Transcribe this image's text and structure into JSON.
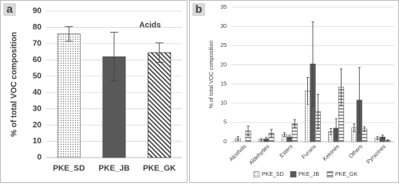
{
  "chart_data": [
    {
      "type": "bar",
      "panel_label": "a",
      "annotation": "Acids",
      "ylabel": "% of total VOC composition",
      "categories": [
        "PKE_SD",
        "PKE_JB",
        "PKE_GK"
      ],
      "values": [
        76,
        62,
        64.5
      ],
      "errors": [
        4.5,
        15,
        6
      ],
      "colors": [
        "#7f7f7f",
        "#595959",
        "#404040"
      ],
      "patterns": [
        "dots",
        "solid",
        "hatch"
      ],
      "ylim": [
        0,
        90
      ],
      "yticks": [
        0,
        10,
        20,
        30,
        40,
        50,
        60,
        70,
        80,
        90
      ],
      "grid": true
    },
    {
      "type": "grouped_bar",
      "panel_label": "b",
      "ylabel": "% of total VOC composition",
      "categories": [
        "Alcohols",
        "Aldehydes",
        "Esters",
        "Furans",
        "Ketones",
        "Others",
        "Pyrazines"
      ],
      "series": [
        {
          "name": "PKE_SD",
          "color": "#8c8c8c",
          "pattern": "dots",
          "values": [
            0.8,
            0.5,
            1.8,
            13.2,
            2.6,
            3.6,
            0.9
          ],
          "errors": [
            0.5,
            0.3,
            0.5,
            3.5,
            0.8,
            1,
            0.4
          ]
        },
        {
          "name": "PKE_JB",
          "color": "#595959",
          "pattern": "solid",
          "values": [
            null,
            0.7,
            1.2,
            20.2,
            3.5,
            10.8,
            1.2
          ],
          "errors": [
            null,
            0.4,
            0.5,
            11,
            2.5,
            8.5,
            0.5
          ]
        },
        {
          "name": "PKE_GK",
          "color": "#7f7f7f",
          "pattern": "lines",
          "values": [
            2.8,
            2.2,
            4.7,
            7.8,
            14.2,
            3.3,
            0.3
          ],
          "errors": [
            1.3,
            1,
            1,
            4.5,
            4.7,
            0.6,
            0.2
          ]
        }
      ],
      "legend": "bottom",
      "ylim": [
        0,
        35
      ],
      "yticks": [
        0,
        5,
        10,
        15,
        20,
        25,
        30,
        35
      ],
      "grid": true
    }
  ]
}
